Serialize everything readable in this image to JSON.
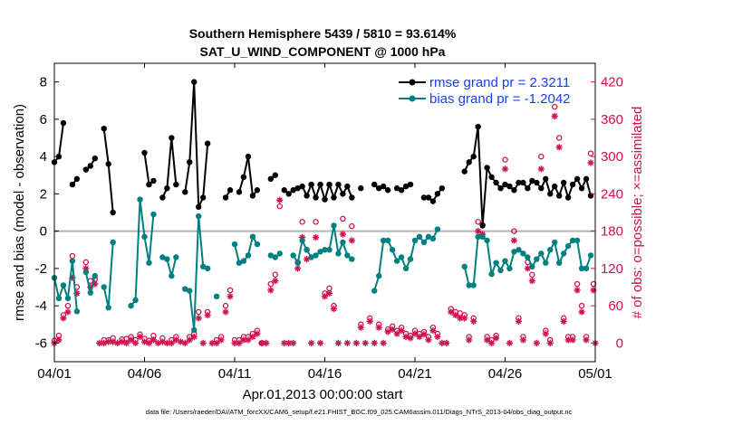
{
  "colors": {
    "rmse": "#000000",
    "bias": "#008080",
    "obs": "#d0104c",
    "zero_line": "#b3b3b3",
    "legend_text": "#1a3cff"
  },
  "chart_data": {
    "type": "line",
    "title_line1": "Southern Hemisphere 5439 / 5810 = 93.614%",
    "title_line2": "SAT_U_WIND_COMPONENT @ 1000 hPa",
    "xlabel": "Apr.01,2013 00:00:00 start",
    "ylabel_left": "rmse and bias (model - observation)",
    "ylabel_right": "# of obs: o=possible; ×=assimilated",
    "footnote": "data file: /Users/raeder/DAI/ATM_forcXX/CAM6_setup/f.e21.FHIST_BGC.f09_025.CAM6assim.011/Diags_NTrS_2013-04/obs_diag_output.nc",
    "xlim": [
      0,
      30
    ],
    "ylim_left": [
      -7,
      9
    ],
    "ylim_right": [
      -30,
      450
    ],
    "x_ticks": [
      0,
      5,
      10,
      15,
      20,
      25,
      30
    ],
    "x_tick_labels": [
      "04/01",
      "04/06",
      "04/11",
      "04/16",
      "04/21",
      "04/26",
      "05/01"
    ],
    "y_ticks_left": [
      -6,
      -4,
      -2,
      0,
      2,
      4,
      6,
      8
    ],
    "y_ticks_right": [
      0,
      60,
      120,
      180,
      240,
      300,
      360,
      420
    ],
    "grid": false,
    "legend_position": "top-right",
    "legend": [
      {
        "label": "rmse grand pr = 2.3211",
        "series": "rmse"
      },
      {
        "label": "bias grand pr = -1.2042",
        "series": "bias"
      }
    ],
    "rmse": [
      [
        0.0,
        3.7
      ],
      [
        0.25,
        4.0
      ],
      [
        0.5,
        5.8
      ],
      [
        1.0,
        2.5
      ],
      [
        1.25,
        2.8
      ],
      [
        1.75,
        3.3
      ],
      [
        2.0,
        3.5
      ],
      [
        2.25,
        3.9
      ],
      [
        2.75,
        5.5
      ],
      [
        3.0,
        3.6
      ],
      [
        3.25,
        1.0
      ],
      [
        5.0,
        4.2
      ],
      [
        5.25,
        2.5
      ],
      [
        5.5,
        2.7
      ],
      [
        6.0,
        1.8
      ],
      [
        6.25,
        2.3
      ],
      [
        6.5,
        5.0
      ],
      [
        6.75,
        2.5
      ],
      [
        7.25,
        2.1
      ],
      [
        7.5,
        3.7
      ],
      [
        7.75,
        8.0
      ],
      [
        8.0,
        1.3
      ],
      [
        8.25,
        1.8
      ],
      [
        8.5,
        4.7
      ],
      [
        9.5,
        1.8
      ],
      [
        9.75,
        2.2
      ],
      [
        10.25,
        2.1
      ],
      [
        10.5,
        2.9
      ],
      [
        10.75,
        4.0
      ],
      [
        11.0,
        1.9
      ],
      [
        11.25,
        2.2
      ],
      [
        12.0,
        2.8
      ],
      [
        12.25,
        3.0
      ],
      [
        12.75,
        2.2
      ],
      [
        13.0,
        2.0
      ],
      [
        13.25,
        2.2
      ],
      [
        13.5,
        2.3
      ],
      [
        13.75,
        2.4
      ],
      [
        14.0,
        1.9
      ],
      [
        14.25,
        2.5
      ],
      [
        14.5,
        1.8
      ],
      [
        14.75,
        2.5
      ],
      [
        15.0,
        1.7
      ],
      [
        15.25,
        2.5
      ],
      [
        15.5,
        1.8
      ],
      [
        15.75,
        2.5
      ],
      [
        16.0,
        2.0
      ],
      [
        16.25,
        2.4
      ],
      [
        16.5,
        1.8
      ],
      [
        17.0,
        2.3
      ],
      [
        17.75,
        2.5
      ],
      [
        18.0,
        2.3
      ],
      [
        18.25,
        2.4
      ],
      [
        18.5,
        2.2
      ],
      [
        19.0,
        2.3
      ],
      [
        19.25,
        2.2
      ],
      [
        19.5,
        2.4
      ],
      [
        19.75,
        2.5
      ],
      [
        20.5,
        1.8
      ],
      [
        20.75,
        1.8
      ],
      [
        21.0,
        1.6
      ],
      [
        21.25,
        2.0
      ],
      [
        21.5,
        2.3
      ],
      [
        22.75,
        3.2
      ],
      [
        23.0,
        3.7
      ],
      [
        23.25,
        4.0
      ],
      [
        23.5,
        5.6
      ],
      [
        23.75,
        0.3
      ],
      [
        24.0,
        3.4
      ],
      [
        24.25,
        2.9
      ],
      [
        24.5,
        2.6
      ],
      [
        24.75,
        2.3
      ],
      [
        25.0,
        2.5
      ],
      [
        25.25,
        2.4
      ],
      [
        25.5,
        2.2
      ],
      [
        25.75,
        2.6
      ],
      [
        26.0,
        2.6
      ],
      [
        26.25,
        2.3
      ],
      [
        26.5,
        2.7
      ],
      [
        26.75,
        2.6
      ],
      [
        27.0,
        2.3
      ],
      [
        27.25,
        2.8
      ],
      [
        27.5,
        2.0
      ],
      [
        27.75,
        2.4
      ],
      [
        28.0,
        1.9
      ],
      [
        28.25,
        2.6
      ],
      [
        28.5,
        1.8
      ],
      [
        28.75,
        2.5
      ],
      [
        29.0,
        2.8
      ],
      [
        29.25,
        2.3
      ],
      [
        29.5,
        2.8
      ],
      [
        29.75,
        1.9
      ]
    ],
    "bias": [
      [
        0.0,
        -2.5
      ],
      [
        0.25,
        -3.6
      ],
      [
        0.5,
        -2.9
      ],
      [
        0.75,
        -3.6
      ],
      [
        1.0,
        -1.6
      ],
      [
        1.25,
        -4.3
      ],
      [
        1.75,
        -2.2
      ],
      [
        2.0,
        -3.3
      ],
      [
        2.25,
        -2.4
      ],
      [
        2.75,
        -3.0
      ],
      [
        3.0,
        -4.1
      ],
      [
        3.25,
        -0.6
      ],
      [
        4.25,
        -4.0
      ],
      [
        4.5,
        -3.7
      ],
      [
        4.75,
        1.7
      ],
      [
        5.0,
        -0.3
      ],
      [
        5.25,
        -1.7
      ],
      [
        5.5,
        0.9
      ],
      [
        6.0,
        -1.4
      ],
      [
        6.25,
        -1.5
      ],
      [
        6.5,
        -2.4
      ],
      [
        6.75,
        -1.4
      ],
      [
        7.25,
        -3.1
      ],
      [
        7.5,
        -3.2
      ],
      [
        7.75,
        -5.3
      ],
      [
        8.0,
        0.8
      ],
      [
        8.25,
        -1.9
      ],
      [
        8.5,
        -2.0
      ],
      [
        9.0,
        -3.5
      ],
      [
        10.0,
        -0.7
      ],
      [
        10.25,
        -1.7
      ],
      [
        10.5,
        -1.6
      ],
      [
        10.75,
        -1.3
      ],
      [
        11.0,
        -0.3
      ],
      [
        11.25,
        -0.7
      ],
      [
        12.0,
        -1.3
      ],
      [
        12.25,
        -1.4
      ],
      [
        12.5,
        -1.2
      ],
      [
        13.25,
        -1.3
      ],
      [
        13.5,
        -1.7
      ],
      [
        13.75,
        -0.5
      ],
      [
        14.0,
        -1.0
      ],
      [
        14.25,
        -1.4
      ],
      [
        14.5,
        -1.3
      ],
      [
        14.75,
        -1.1
      ],
      [
        15.0,
        -1.0
      ],
      [
        15.25,
        -1.0
      ],
      [
        15.5,
        0.3
      ],
      [
        15.75,
        -1.2
      ],
      [
        16.0,
        -0.6
      ],
      [
        16.25,
        -1.3
      ],
      [
        16.5,
        -1.5
      ],
      [
        17.75,
        -3.2
      ],
      [
        18.0,
        -2.4
      ],
      [
        18.25,
        -0.5
      ],
      [
        18.5,
        -0.5
      ],
      [
        18.75,
        -1.0
      ],
      [
        19.0,
        -1.6
      ],
      [
        19.25,
        -1.4
      ],
      [
        19.5,
        -2.0
      ],
      [
        19.75,
        -1.5
      ],
      [
        20.0,
        -0.5
      ],
      [
        20.25,
        -0.3
      ],
      [
        20.5,
        -0.6
      ],
      [
        20.75,
        -0.3
      ],
      [
        21.0,
        -0.4
      ],
      [
        21.25,
        0.1
      ],
      [
        22.75,
        -1.9
      ],
      [
        23.0,
        -2.9
      ],
      [
        23.25,
        -2.9
      ],
      [
        23.5,
        -0.3
      ],
      [
        23.75,
        -0.3
      ],
      [
        24.0,
        -0.5
      ],
      [
        24.25,
        -2.3
      ],
      [
        24.5,
        -1.7
      ],
      [
        24.75,
        -2.1
      ],
      [
        25.0,
        -1.6
      ],
      [
        25.25,
        -2.0
      ],
      [
        25.5,
        -1.1
      ],
      [
        25.75,
        -1.0
      ],
      [
        26.0,
        -1.2
      ],
      [
        26.25,
        -1.4
      ],
      [
        26.5,
        -1.9
      ],
      [
        26.75,
        -1.5
      ],
      [
        27.0,
        -1.2
      ],
      [
        27.25,
        -1.7
      ],
      [
        27.5,
        -1.0
      ],
      [
        27.75,
        -0.6
      ],
      [
        28.0,
        -1.7
      ],
      [
        28.25,
        -1.2
      ],
      [
        28.5,
        -0.8
      ],
      [
        28.75,
        -0.5
      ],
      [
        29.0,
        -0.5
      ],
      [
        29.25,
        -2.0
      ],
      [
        29.5,
        -2.0
      ],
      [
        29.75,
        -1.3
      ]
    ],
    "obs_possible": [
      [
        0.0,
        4
      ],
      [
        0.25,
        12
      ],
      [
        0.5,
        45
      ],
      [
        0.75,
        60
      ],
      [
        1.0,
        140
      ],
      [
        1.25,
        90
      ],
      [
        1.75,
        130
      ],
      [
        2.0,
        100
      ],
      [
        2.25,
        103
      ],
      [
        2.75,
        5
      ],
      [
        3.0,
        5
      ],
      [
        3.25,
        8
      ],
      [
        3.75,
        6
      ],
      [
        4.0,
        7
      ],
      [
        4.25,
        10
      ],
      [
        4.5,
        5
      ],
      [
        4.75,
        14
      ],
      [
        5.0,
        7
      ],
      [
        5.25,
        4
      ],
      [
        5.5,
        12
      ],
      [
        6.0,
        8
      ],
      [
        6.5,
        5
      ],
      [
        6.75,
        10
      ],
      [
        7.5,
        10
      ],
      [
        7.75,
        15
      ],
      [
        8.0,
        50
      ],
      [
        8.5,
        50
      ],
      [
        9.0,
        5
      ],
      [
        9.25,
        10
      ],
      [
        9.5,
        60
      ],
      [
        9.75,
        85
      ],
      [
        10.0,
        5
      ],
      [
        10.25,
        5
      ],
      [
        10.5,
        10
      ],
      [
        10.75,
        10
      ],
      [
        11.0,
        15
      ],
      [
        11.25,
        20
      ],
      [
        11.5,
        0
      ],
      [
        12.0,
        95
      ],
      [
        12.25,
        110
      ],
      [
        12.5,
        220
      ],
      [
        13.5,
        130
      ],
      [
        13.75,
        195
      ],
      [
        14.0,
        150
      ],
      [
        14.5,
        195
      ],
      [
        15.0,
        80
      ],
      [
        15.25,
        88
      ],
      [
        15.5,
        60
      ],
      [
        16.0,
        200
      ],
      [
        16.5,
        188
      ],
      [
        17.0,
        30
      ],
      [
        17.5,
        40
      ],
      [
        18.0,
        30
      ],
      [
        18.5,
        22
      ],
      [
        18.75,
        27
      ],
      [
        19.0,
        20
      ],
      [
        19.25,
        25
      ],
      [
        19.5,
        15
      ],
      [
        19.75,
        12
      ],
      [
        20.0,
        20
      ],
      [
        20.25,
        15
      ],
      [
        20.5,
        18
      ],
      [
        20.75,
        10
      ],
      [
        21.0,
        25
      ],
      [
        21.25,
        15
      ],
      [
        22.0,
        55
      ],
      [
        22.25,
        50
      ],
      [
        22.5,
        48
      ],
      [
        22.75,
        45
      ],
      [
        23.0,
        10
      ],
      [
        23.25,
        40
      ],
      [
        23.5,
        195
      ],
      [
        23.75,
        190
      ],
      [
        24.0,
        10
      ],
      [
        24.25,
        5
      ],
      [
        24.5,
        12
      ],
      [
        25.0,
        295
      ],
      [
        25.5,
        180
      ],
      [
        25.75,
        40
      ],
      [
        26.0,
        10
      ],
      [
        26.25,
        130
      ],
      [
        26.5,
        110
      ],
      [
        27.0,
        300
      ],
      [
        27.25,
        20
      ],
      [
        27.5,
        5
      ],
      [
        27.75,
        380
      ],
      [
        28.0,
        330
      ],
      [
        28.25,
        40
      ],
      [
        28.5,
        10
      ],
      [
        28.75,
        10
      ],
      [
        29.0,
        95
      ],
      [
        29.25,
        60
      ],
      [
        29.5,
        10
      ],
      [
        29.75,
        305
      ],
      [
        29.9,
        95
      ]
    ],
    "obs_assimilated": [
      [
        0.0,
        0
      ],
      [
        0.25,
        5
      ],
      [
        0.5,
        40
      ],
      [
        0.75,
        50
      ],
      [
        1.0,
        105
      ],
      [
        1.25,
        80
      ],
      [
        1.75,
        120
      ],
      [
        2.0,
        90
      ],
      [
        2.25,
        95
      ],
      [
        2.5,
        0
      ],
      [
        2.75,
        0
      ],
      [
        3.0,
        2
      ],
      [
        3.25,
        2
      ],
      [
        3.5,
        0
      ],
      [
        3.75,
        2
      ],
      [
        4.0,
        0
      ],
      [
        4.25,
        5
      ],
      [
        4.5,
        0
      ],
      [
        4.75,
        10
      ],
      [
        5.0,
        2
      ],
      [
        5.25,
        0
      ],
      [
        5.5,
        5
      ],
      [
        5.75,
        0
      ],
      [
        6.0,
        2
      ],
      [
        6.25,
        0
      ],
      [
        6.5,
        0
      ],
      [
        6.75,
        5
      ],
      [
        7.0,
        2
      ],
      [
        7.25,
        0
      ],
      [
        7.5,
        5
      ],
      [
        7.75,
        10
      ],
      [
        8.0,
        40
      ],
      [
        8.25,
        0
      ],
      [
        8.5,
        45
      ],
      [
        8.75,
        0
      ],
      [
        9.0,
        0
      ],
      [
        9.25,
        5
      ],
      [
        9.5,
        50
      ],
      [
        9.75,
        75
      ],
      [
        10.0,
        0
      ],
      [
        10.25,
        0
      ],
      [
        10.5,
        5
      ],
      [
        10.75,
        5
      ],
      [
        11.0,
        10
      ],
      [
        11.25,
        15
      ],
      [
        11.5,
        0
      ],
      [
        11.75,
        0
      ],
      [
        12.0,
        85
      ],
      [
        12.25,
        100
      ],
      [
        12.5,
        230
      ],
      [
        12.75,
        0
      ],
      [
        13.0,
        0
      ],
      [
        13.25,
        0
      ],
      [
        13.5,
        120
      ],
      [
        13.75,
        170
      ],
      [
        14.0,
        135
      ],
      [
        14.25,
        0
      ],
      [
        14.5,
        170
      ],
      [
        14.75,
        0
      ],
      [
        15.0,
        75
      ],
      [
        15.25,
        80
      ],
      [
        15.5,
        55
      ],
      [
        15.75,
        0
      ],
      [
        16.0,
        175
      ],
      [
        16.25,
        0
      ],
      [
        16.5,
        165
      ],
      [
        16.75,
        0
      ],
      [
        17.0,
        25
      ],
      [
        17.25,
        0
      ],
      [
        17.5,
        35
      ],
      [
        17.75,
        0
      ],
      [
        18.0,
        25
      ],
      [
        18.25,
        0
      ],
      [
        18.5,
        18
      ],
      [
        18.75,
        22
      ],
      [
        19.0,
        15
      ],
      [
        19.25,
        20
      ],
      [
        19.5,
        10
      ],
      [
        19.75,
        8
      ],
      [
        20.0,
        15
      ],
      [
        20.25,
        10
      ],
      [
        20.5,
        14
      ],
      [
        20.75,
        5
      ],
      [
        21.0,
        20
      ],
      [
        21.25,
        10
      ],
      [
        21.5,
        0
      ],
      [
        21.75,
        0
      ],
      [
        22.0,
        50
      ],
      [
        22.25,
        45
      ],
      [
        22.5,
        40
      ],
      [
        22.75,
        40
      ],
      [
        23.0,
        5
      ],
      [
        23.25,
        35
      ],
      [
        23.5,
        180
      ],
      [
        23.75,
        175
      ],
      [
        24.0,
        5
      ],
      [
        24.25,
        0
      ],
      [
        24.5,
        8
      ],
      [
        25.0,
        280
      ],
      [
        25.25,
        0
      ],
      [
        25.5,
        165
      ],
      [
        25.75,
        35
      ],
      [
        26.0,
        5
      ],
      [
        26.25,
        120
      ],
      [
        26.5,
        100
      ],
      [
        26.75,
        0
      ],
      [
        27.0,
        280
      ],
      [
        27.25,
        15
      ],
      [
        27.5,
        0
      ],
      [
        27.75,
        365
      ],
      [
        28.0,
        315
      ],
      [
        28.25,
        35
      ],
      [
        28.5,
        5
      ],
      [
        28.75,
        5
      ],
      [
        29.0,
        85
      ],
      [
        29.25,
        50
      ],
      [
        29.5,
        5
      ],
      [
        29.75,
        290
      ],
      [
        29.9,
        85
      ],
      [
        30.0,
        0
      ]
    ]
  }
}
